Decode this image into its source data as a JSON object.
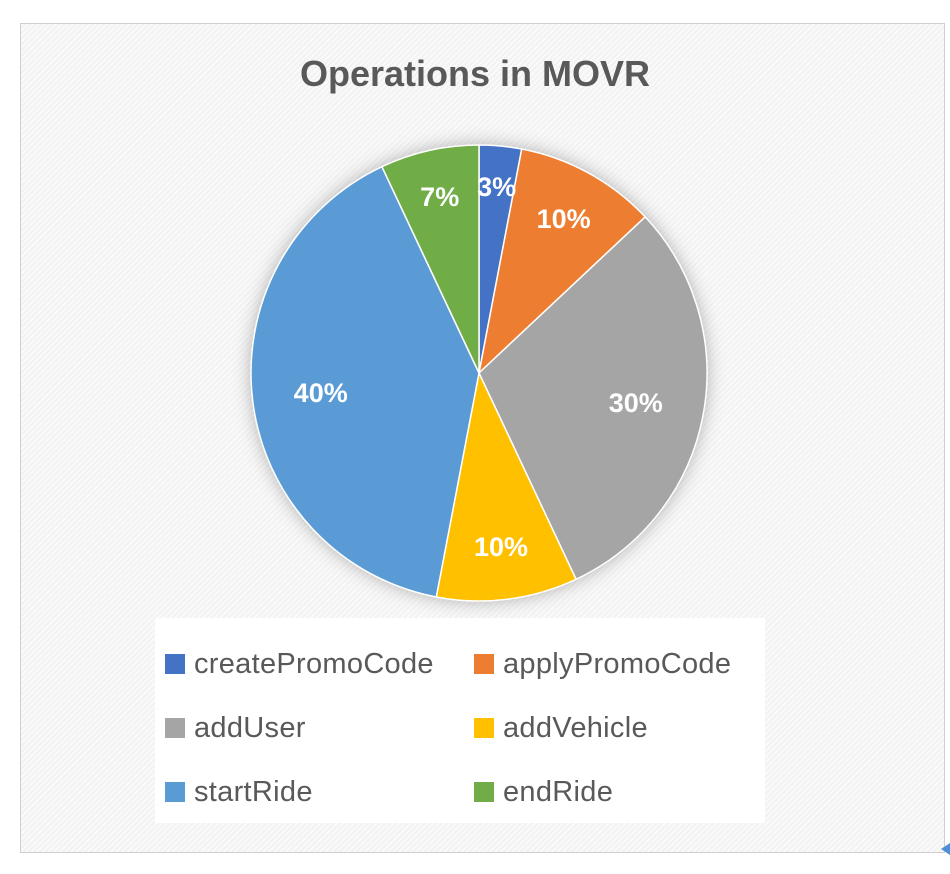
{
  "chart_data": {
    "type": "pie",
    "title": "Operations in MOVR",
    "categories": [
      "createPromoCode",
      "applyPromoCode",
      "addUser",
      "addVehicle",
      "startRide",
      "endRide"
    ],
    "values": [
      3,
      10,
      30,
      10,
      40,
      7
    ],
    "labels": [
      "3%",
      "10%",
      "30%",
      "10%",
      "40%",
      "7%"
    ],
    "colors": [
      "#4472c4",
      "#ed7d31",
      "#a5a5a5",
      "#ffc000",
      "#5b9bd5",
      "#70ad47"
    ],
    "legend_position": "bottom",
    "start_angle": "12 o'clock",
    "direction": "clockwise"
  }
}
